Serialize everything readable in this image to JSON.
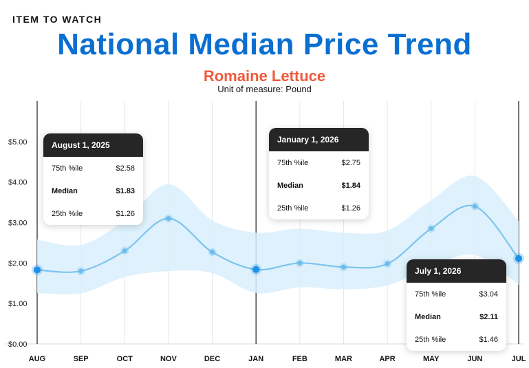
{
  "header": {
    "kicker": "ITEM TO WATCH",
    "title": "National Median Price Trend",
    "subtitle": "Romaine Lettuce",
    "unit": "Unit of measure: Pound"
  },
  "colors": {
    "title": "#0a6fd1",
    "subtitle": "#f05a3c",
    "line": "#7cc4ee",
    "band": "#d8eefc",
    "point": "#6bbcec",
    "point_highlight": "#1e90e8"
  },
  "chart_data": {
    "type": "line",
    "categories": [
      "AUG",
      "SEP",
      "OCT",
      "NOV",
      "DEC",
      "JAN",
      "FEB",
      "MAR",
      "APR",
      "MAY",
      "JUN",
      "JUL"
    ],
    "series": [
      {
        "name": "Median",
        "values": [
          1.83,
          1.8,
          2.3,
          3.1,
          2.27,
          1.84,
          2.0,
          1.9,
          1.98,
          2.85,
          3.4,
          2.11
        ]
      },
      {
        "name": "75th %ile",
        "values": [
          2.58,
          2.45,
          3.05,
          3.95,
          3.05,
          2.75,
          2.85,
          2.75,
          2.8,
          3.55,
          4.15,
          3.04
        ]
      },
      {
        "name": "25th %ile",
        "values": [
          1.26,
          1.25,
          1.65,
          1.8,
          1.75,
          1.26,
          1.4,
          1.35,
          1.45,
          1.9,
          2.2,
          1.46
        ]
      }
    ],
    "ylim": [
      0,
      6
    ],
    "yticks": [
      "$0.00",
      "$1.00",
      "$2.00",
      "$3.00",
      "$4.00",
      "$5.00"
    ],
    "ytick_values": [
      0,
      1,
      2,
      3,
      4,
      5
    ],
    "highlighted_indices": [
      0,
      5,
      11
    ],
    "grid": true
  },
  "tooltips": [
    {
      "date": "August 1, 2025",
      "rows": [
        {
          "label": "75th %ile",
          "value": "$2.58"
        },
        {
          "label": "Median",
          "value": "$1.83"
        },
        {
          "label": "25th %ile",
          "value": "$1.26"
        }
      ]
    },
    {
      "date": "January 1, 2026",
      "rows": [
        {
          "label": "75th %ile",
          "value": "$2.75"
        },
        {
          "label": "Median",
          "value": "$1.84"
        },
        {
          "label": "25th %ile",
          "value": "$1.26"
        }
      ]
    },
    {
      "date": "July 1, 2026",
      "rows": [
        {
          "label": "75th %ile",
          "value": "$3.04"
        },
        {
          "label": "Median",
          "value": "$2.11"
        },
        {
          "label": "25th %ile",
          "value": "$1.46"
        }
      ]
    }
  ]
}
